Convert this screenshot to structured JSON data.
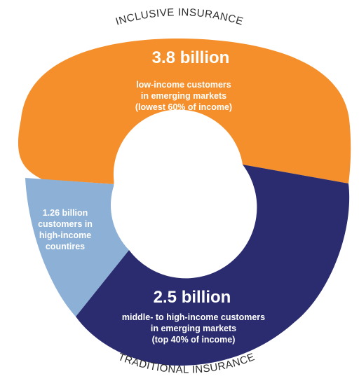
{
  "chart_data": {
    "type": "pie",
    "segments": [
      {
        "id": "inclusive",
        "value": 3.8,
        "value_label": "3.8 billion",
        "description": [
          "low-income customers",
          "in emerging markets",
          "(lowest 60% of income)"
        ],
        "color": "#F58F2B"
      },
      {
        "id": "traditional",
        "value": 2.5,
        "value_label": "2.5 billion",
        "description": [
          "middle- to high-income customers",
          "in emerging markets",
          "(top 40% of income)"
        ],
        "color": "#2B2C6F"
      },
      {
        "id": "high_income",
        "value": 1.26,
        "value_label": "",
        "description": [
          "1.26 billion",
          "customers in",
          "high-income",
          "countires"
        ],
        "color": "#8DB0D6"
      }
    ],
    "arc_labels": {
      "top": "INCLUSIVE INSURANCE",
      "bottom": "TRADITIONAL INSURANCE"
    }
  }
}
